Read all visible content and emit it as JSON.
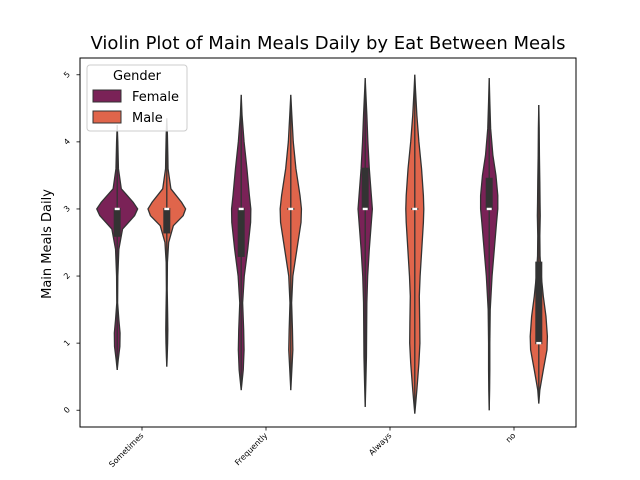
{
  "chart_data": {
    "type": "violin",
    "title": "Violin Plot of Main Meals Daily by Eat Between Meals",
    "xlabel": "",
    "ylabel": "Main Meals Daily",
    "categories": [
      "Sometimes",
      "Frequently",
      "Always",
      "no"
    ],
    "yticks": [
      "0",
      "1",
      "2",
      "3",
      "4",
      "5"
    ],
    "ylim": [
      -0.25,
      5.25
    ],
    "legend": {
      "title": "Gender",
      "placement": "top-left",
      "entries": [
        "Female",
        "Male"
      ]
    },
    "series": [
      {
        "name": "Female",
        "color": "#7a2257",
        "violins": [
          {
            "category": "Sometimes",
            "min": 0.6,
            "max": 4.25,
            "q1": 2.6,
            "median": 3.0,
            "q3": 3.0,
            "profile": [
              [
                0.6,
                0.0
              ],
              [
                0.75,
                0.05
              ],
              [
                0.95,
                0.13
              ],
              [
                1.15,
                0.14
              ],
              [
                1.35,
                0.08
              ],
              [
                1.6,
                0.02
              ],
              [
                2.0,
                0.03
              ],
              [
                2.4,
                0.08
              ],
              [
                2.7,
                0.26
              ],
              [
                2.9,
                0.85
              ],
              [
                3.0,
                1.0
              ],
              [
                3.1,
                0.78
              ],
              [
                3.3,
                0.2
              ],
              [
                3.6,
                0.06
              ],
              [
                4.0,
                0.03
              ],
              [
                4.25,
                0.0
              ]
            ]
          },
          {
            "category": "Frequently",
            "min": 0.3,
            "max": 4.7,
            "q1": 2.3,
            "median": 3.0,
            "q3": 3.0,
            "profile": [
              [
                0.3,
                0.0
              ],
              [
                0.6,
                0.1
              ],
              [
                0.9,
                0.14
              ],
              [
                1.2,
                0.12
              ],
              [
                1.6,
                0.07
              ],
              [
                2.0,
                0.15
              ],
              [
                2.4,
                0.32
              ],
              [
                2.8,
                0.46
              ],
              [
                3.0,
                0.47
              ],
              [
                3.2,
                0.4
              ],
              [
                3.6,
                0.28
              ],
              [
                4.0,
                0.14
              ],
              [
                4.4,
                0.04
              ],
              [
                4.7,
                0.0
              ]
            ]
          },
          {
            "category": "Always",
            "min": 0.05,
            "max": 4.95,
            "q1": 3.0,
            "median": 3.0,
            "q3": 3.6,
            "profile": [
              [
                0.05,
                0.0
              ],
              [
                0.4,
                0.03
              ],
              [
                0.8,
                0.06
              ],
              [
                1.2,
                0.07
              ],
              [
                1.6,
                0.08
              ],
              [
                2.0,
                0.12
              ],
              [
                2.4,
                0.2
              ],
              [
                2.8,
                0.3
              ],
              [
                3.0,
                0.35
              ],
              [
                3.2,
                0.3
              ],
              [
                3.6,
                0.2
              ],
              [
                4.0,
                0.13
              ],
              [
                4.4,
                0.08
              ],
              [
                4.8,
                0.02
              ],
              [
                4.95,
                0.0
              ]
            ]
          },
          {
            "category": "no",
            "min": 0.0,
            "max": 4.95,
            "q1": 3.0,
            "median": 3.0,
            "q3": 3.45,
            "profile": [
              [
                0.0,
                0.0
              ],
              [
                0.3,
                0.02
              ],
              [
                0.6,
                0.03
              ],
              [
                1.0,
                0.03
              ],
              [
                1.5,
                0.05
              ],
              [
                2.0,
                0.14
              ],
              [
                2.4,
                0.25
              ],
              [
                2.8,
                0.36
              ],
              [
                3.0,
                0.42
              ],
              [
                3.2,
                0.42
              ],
              [
                3.5,
                0.33
              ],
              [
                3.8,
                0.18
              ],
              [
                4.2,
                0.07
              ],
              [
                4.6,
                0.03
              ],
              [
                4.95,
                0.0
              ]
            ]
          }
        ]
      },
      {
        "name": "Male",
        "color": "#e0654b",
        "violins": [
          {
            "category": "Sometimes",
            "min": 0.65,
            "max": 4.35,
            "q1": 2.65,
            "median": 3.0,
            "q3": 3.0,
            "profile": [
              [
                0.65,
                0.0
              ],
              [
                0.8,
                0.02
              ],
              [
                1.0,
                0.04
              ],
              [
                1.2,
                0.05
              ],
              [
                1.45,
                0.04
              ],
              [
                1.8,
                0.02
              ],
              [
                2.2,
                0.03
              ],
              [
                2.5,
                0.09
              ],
              [
                2.75,
                0.32
              ],
              [
                2.9,
                0.8
              ],
              [
                3.0,
                0.92
              ],
              [
                3.1,
                0.72
              ],
              [
                3.3,
                0.2
              ],
              [
                3.6,
                0.06
              ],
              [
                3.8,
                0.05
              ],
              [
                4.1,
                0.03
              ],
              [
                4.35,
                0.0
              ]
            ]
          },
          {
            "category": "Frequently",
            "min": 0.3,
            "max": 4.7,
            "q1": 3.0,
            "median": 3.0,
            "q3": 3.0,
            "profile": [
              [
                0.3,
                0.0
              ],
              [
                0.6,
                0.05
              ],
              [
                0.9,
                0.1
              ],
              [
                1.2,
                0.08
              ],
              [
                1.6,
                0.04
              ],
              [
                2.0,
                0.1
              ],
              [
                2.4,
                0.3
              ],
              [
                2.8,
                0.5
              ],
              [
                3.0,
                0.52
              ],
              [
                3.2,
                0.45
              ],
              [
                3.6,
                0.25
              ],
              [
                4.0,
                0.12
              ],
              [
                4.4,
                0.05
              ],
              [
                4.7,
                0.0
              ]
            ]
          },
          {
            "category": "Always",
            "min": -0.05,
            "max": 5.0,
            "q1": 3.0,
            "median": 3.0,
            "q3": 3.0,
            "profile": [
              [
                -0.05,
                0.0
              ],
              [
                0.3,
                0.1
              ],
              [
                0.7,
                0.2
              ],
              [
                1.0,
                0.25
              ],
              [
                1.3,
                0.24
              ],
              [
                1.7,
                0.22
              ],
              [
                2.0,
                0.26
              ],
              [
                2.4,
                0.34
              ],
              [
                2.8,
                0.42
              ],
              [
                3.0,
                0.44
              ],
              [
                3.2,
                0.42
              ],
              [
                3.6,
                0.33
              ],
              [
                4.0,
                0.2
              ],
              [
                4.4,
                0.1
              ],
              [
                4.8,
                0.03
              ],
              [
                5.0,
                0.0
              ]
            ]
          },
          {
            "category": "no",
            "min": 0.1,
            "max": 4.55,
            "q1": 1.0,
            "median": 1.0,
            "q3": 2.2,
            "profile": [
              [
                0.1,
                0.0
              ],
              [
                0.3,
                0.05
              ],
              [
                0.6,
                0.22
              ],
              [
                0.9,
                0.4
              ],
              [
                1.1,
                0.42
              ],
              [
                1.4,
                0.35
              ],
              [
                1.7,
                0.22
              ],
              [
                2.0,
                0.12
              ],
              [
                2.3,
                0.06
              ],
              [
                2.6,
                0.05
              ],
              [
                2.9,
                0.07
              ],
              [
                3.1,
                0.06
              ],
              [
                3.4,
                0.05
              ],
              [
                3.8,
                0.03
              ],
              [
                4.2,
                0.02
              ],
              [
                4.55,
                0.0
              ]
            ]
          }
        ]
      }
    ]
  }
}
